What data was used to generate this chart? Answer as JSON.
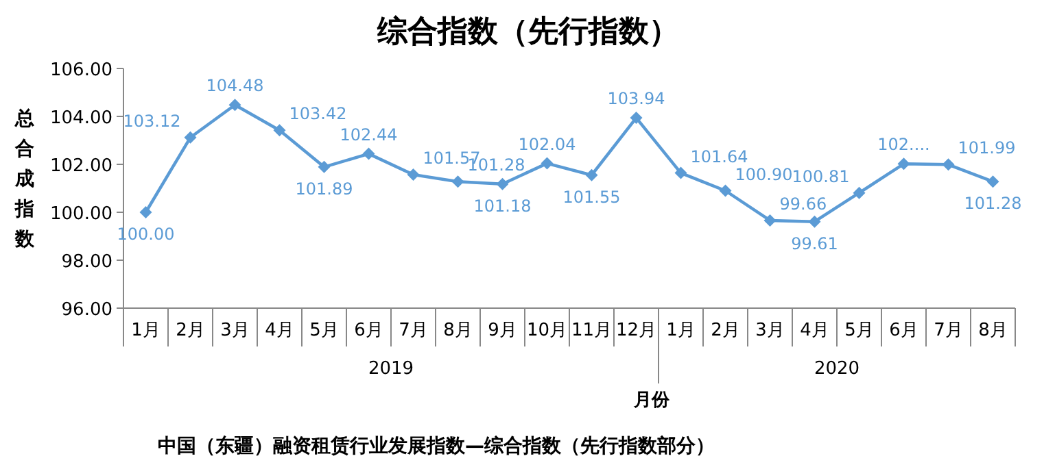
{
  "chart_data": {
    "type": "line",
    "title": "综合指数（先行指数）",
    "xlabel": "月份",
    "ylabel": "总合成指数",
    "categories": [
      "1月",
      "2月",
      "3月",
      "4月",
      "5月",
      "6月",
      "7月",
      "8月",
      "9月",
      "10月",
      "11月",
      "12月",
      "1月",
      "2月",
      "3月",
      "4月",
      "5月",
      "6月",
      "7月",
      "8月"
    ],
    "series": [
      {
        "color": "#5b9bd5",
        "values": [
          100.0,
          103.12,
          104.48,
          103.42,
          101.89,
          102.44,
          101.57,
          101.28,
          101.18,
          102.04,
          101.55,
          103.94,
          101.64,
          100.9,
          99.66,
          99.61,
          100.81,
          102.02,
          101.99,
          101.28
        ],
        "value_labels": [
          "100.00",
          "103.12",
          "104.48",
          "103.42",
          "101.89",
          "102.44",
          "101.57",
          "101.28",
          "101.18",
          "102.04",
          "101.55",
          "103.94",
          "101.64",
          "100.90",
          "99.66",
          "99.61",
          "100.81",
          "102....",
          "101.99",
          "101.28"
        ]
      }
    ],
    "ylim": [
      96,
      106
    ],
    "yticks": [
      {
        "value": 96,
        "label": "96.00"
      },
      {
        "value": 98,
        "label": "98.00"
      },
      {
        "value": 100,
        "label": "100.00"
      },
      {
        "value": 102,
        "label": "102.00"
      },
      {
        "value": 104,
        "label": "104.00"
      },
      {
        "value": 106,
        "label": "106.00"
      }
    ],
    "marker": "diamond",
    "legend": false,
    "grid": false,
    "annotations": [
      "2019",
      "2020",
      "中国（东疆）融资租赁行业发展指数—综合指数（先行指数部分）"
    ]
  }
}
